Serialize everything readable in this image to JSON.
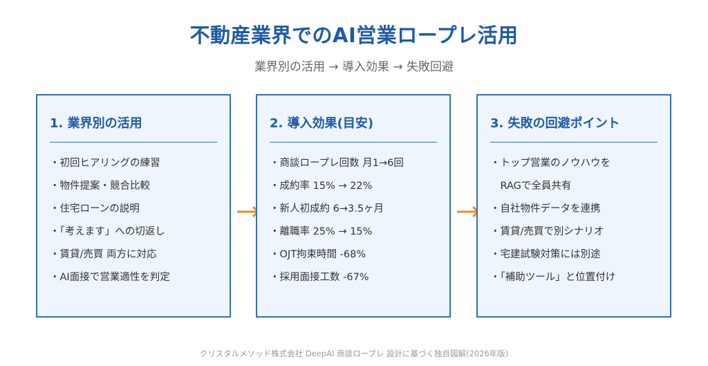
{
  "title": "不動産業界でのAI営業ロープレ活用",
  "subtitle": "業界別の活用 → 導入効果 → 失敗回避",
  "cards": [
    {
      "heading": "1. 業界別の活用",
      "items": [
        "・初回ヒアリングの練習",
        "・物件提案・競合比較",
        "・住宅ローンの説明",
        "・「考えます」への切返し",
        "・賃貸/売買 両方に対応",
        "・AI面接で営業適性を判定"
      ]
    },
    {
      "heading": "2. 導入効果(目安)",
      "items": [
        "・商談ロープレ回数 月1→6回",
        "・成約率 15% → 22%",
        "・新人初成約 6→3.5ヶ月",
        "・離職率 25% → 15%",
        "・OJT拘束時間 -68%",
        "・採用面接工数 -67%"
      ]
    },
    {
      "heading": "3. 失敗の回避ポイント",
      "items": [
        "・トップ営業のノウハウを",
        "　RAGで全員共有",
        "・自社物件データを連携",
        "・賃貸/売買で別シナリオ",
        "・宅建試験対策には別途",
        "・「補助ツール」と位置付け"
      ]
    }
  ],
  "colors": {
    "title": "#1f5aa6",
    "card_border": "#2f6fbd",
    "card_fill": "#eef5fc",
    "arrow": "#f08a1c"
  },
  "footer": "クリスタルメソッド株式会社 DeepAI 商談ロープレ 設計に基づく独自図解(2026年版)"
}
